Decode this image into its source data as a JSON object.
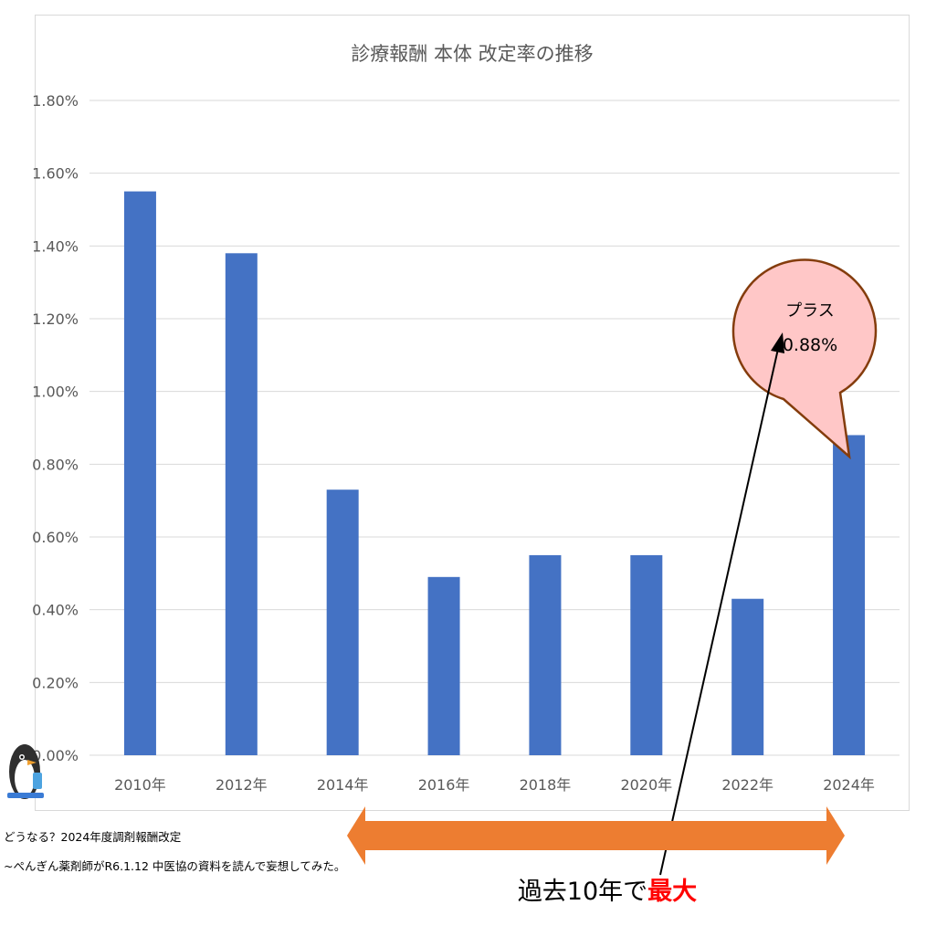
{
  "chart_data": {
    "type": "bar",
    "title": "診療報酬 本体 改定率の推移",
    "categories": [
      "2010年",
      "2012年",
      "2014年",
      "2016年",
      "2018年",
      "2020年",
      "2022年",
      "2024年"
    ],
    "values": [
      1.55,
      1.38,
      0.73,
      0.49,
      0.55,
      0.55,
      0.43,
      0.88
    ],
    "ylim": [
      0,
      1.8
    ],
    "yticks": [
      "0.00%",
      "0.20%",
      "0.40%",
      "0.60%",
      "0.80%",
      "1.00%",
      "1.20%",
      "1.40%",
      "1.60%",
      "1.80%"
    ],
    "grid": true,
    "bar_color": "#4472c4",
    "annotation": {
      "line1": "プラス",
      "line2": "0.88%",
      "fill": "#ffc7c7",
      "stroke": "#843c0c"
    }
  },
  "caption": {
    "line1": "どうなる？2024年度調剤報酬改定",
    "line2": "~ぺんぎん薬剤師がR6.1.12 中医協の資料を読んで妄想してみた。"
  },
  "banner": {
    "text_prefix": "過去10年で",
    "text_highlight": "最大",
    "arrow_color": "#ed7d31",
    "highlight_color": "#ff0000"
  }
}
